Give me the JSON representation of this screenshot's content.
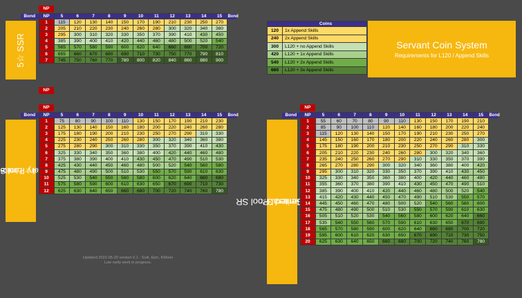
{
  "labels": {
    "np": "NP",
    "bond": "Bond",
    "coins": "Coins"
  },
  "levels": [
    "5",
    "6",
    "7",
    "8",
    "9",
    "10",
    "11",
    "12",
    "13",
    "14",
    "15"
  ],
  "title": {
    "main": "Servant Coin System",
    "sub": "Requirements for L120 / Append Skills"
  },
  "footer": {
    "line1": "Updated 2022-05-20 version 0.1 - SoA, Epic, KMoon",
    "line2": "Low rarity work in progress."
  },
  "colors": {
    "background": "#4a4a4a",
    "np": "#c00000",
    "header": "#3b2f8c",
    "panel": "#f6b70f"
  },
  "legend": [
    {
      "value": "120",
      "label": "1x Append Skills"
    },
    {
      "value": "240",
      "label": "2x Append Skills"
    },
    {
      "value": "300",
      "label": "L120 + no Append Skills"
    },
    {
      "value": "420",
      "label": "L120 + 1x Append Skills"
    },
    {
      "value": "540",
      "label": "L120 + 2x Append Skills"
    },
    {
      "value": "660",
      "label": "L120 + 3x Append Skills"
    }
  ],
  "ssr": {
    "label": "5☆ SSR",
    "rows": [
      {
        "np": "1",
        "vals": [
          "115",
          "120",
          "130",
          "140",
          "150",
          "170",
          "190",
          "210",
          "230",
          "250",
          "270"
        ]
      },
      {
        "np": "2",
        "vals": [
          "205",
          "210",
          "220",
          "230",
          "240",
          "260",
          "280",
          "300",
          "320",
          "340",
          "360"
        ]
      },
      {
        "np": "3",
        "vals": [
          "295",
          "300",
          "310",
          "320",
          "330",
          "350",
          "370",
          "390",
          "410",
          "430",
          "450"
        ]
      },
      {
        "np": "4",
        "vals": [
          "385",
          "390",
          "400",
          "410",
          "420",
          "440",
          "460",
          "480",
          "500",
          "520",
          "540"
        ]
      },
      {
        "np": "5",
        "vals": [
          "565",
          "570",
          "580",
          "590",
          "600",
          "620",
          "640",
          "660",
          "680",
          "700",
          "720"
        ]
      },
      {
        "np": "6",
        "vals": [
          "655",
          "660",
          "670",
          "680",
          "690",
          "710",
          "730",
          "750",
          "770",
          "790",
          "810"
        ]
      },
      {
        "np": "7",
        "vals": [
          "745",
          "750",
          "760",
          "770",
          "780",
          "800",
          "820",
          "840",
          "860",
          "880",
          "900"
        ]
      }
    ]
  },
  "limited": {
    "label1": "4☆ Limited",
    "label2": "or Story Pool SR",
    "rows": [
      {
        "np": "1",
        "vals": [
          "75",
          "80",
          "90",
          "100",
          "110",
          "130",
          "150",
          "170",
          "190",
          "210",
          "230"
        ]
      },
      {
        "np": "2",
        "vals": [
          "125",
          "130",
          "140",
          "150",
          "160",
          "180",
          "200",
          "220",
          "240",
          "260",
          "280"
        ]
      },
      {
        "np": "3",
        "vals": [
          "175",
          "180",
          "190",
          "200",
          "210",
          "230",
          "250",
          "270",
          "290",
          "310",
          "330"
        ]
      },
      {
        "np": "4",
        "vals": [
          "225",
          "230",
          "240",
          "250",
          "260",
          "280",
          "300",
          "320",
          "340",
          "360",
          "380"
        ]
      },
      {
        "np": "5",
        "vals": [
          "275",
          "280",
          "290",
          "300",
          "310",
          "330",
          "350",
          "370",
          "390",
          "410",
          "430"
        ]
      },
      {
        "np": "6",
        "vals": [
          "325",
          "330",
          "340",
          "350",
          "360",
          "380",
          "400",
          "420",
          "440",
          "460",
          "480"
        ]
      },
      {
        "np": "7",
        "vals": [
          "375",
          "380",
          "390",
          "400",
          "410",
          "430",
          "450",
          "470",
          "490",
          "510",
          "530"
        ]
      },
      {
        "np": "8",
        "vals": [
          "425",
          "430",
          "440",
          "450",
          "460",
          "480",
          "500",
          "520",
          "540",
          "560",
          "580"
        ]
      },
      {
        "np": "9",
        "vals": [
          "475",
          "480",
          "490",
          "500",
          "510",
          "530",
          "550",
          "570",
          "590",
          "610",
          "630"
        ]
      },
      {
        "np": "10",
        "vals": [
          "525",
          "530",
          "540",
          "550",
          "560",
          "580",
          "600",
          "620",
          "640",
          "660",
          "680"
        ]
      },
      {
        "np": "11",
        "vals": [
          "575",
          "580",
          "590",
          "600",
          "610",
          "630",
          "650",
          "670",
          "690",
          "710",
          "730"
        ]
      },
      {
        "np": "12",
        "vals": [
          "625",
          "630",
          "640",
          "650",
          "660",
          "680",
          "700",
          "720",
          "740",
          "760",
          "780"
        ]
      }
    ]
  },
  "general": {
    "label1": "4☆ General Pool SR",
    "label2": "or Limited 3☆",
    "rows": [
      {
        "np": "1",
        "vals": [
          "55",
          "60",
          "70",
          "80",
          "90",
          "110",
          "130",
          "150",
          "170",
          "190",
          "210"
        ]
      },
      {
        "np": "2",
        "vals": [
          "85",
          "90",
          "100",
          "110",
          "120",
          "140",
          "160",
          "180",
          "200",
          "220",
          "240"
        ]
      },
      {
        "np": "3",
        "vals": [
          "115",
          "120",
          "130",
          "140",
          "150",
          "170",
          "190",
          "210",
          "230",
          "250",
          "270"
        ]
      },
      {
        "np": "4",
        "vals": [
          "145",
          "150",
          "160",
          "170",
          "180",
          "200",
          "220",
          "240",
          "260",
          "280",
          "300"
        ]
      },
      {
        "np": "5",
        "vals": [
          "175",
          "180",
          "190",
          "200",
          "210",
          "230",
          "250",
          "270",
          "290",
          "310",
          "330"
        ]
      },
      {
        "np": "6",
        "vals": [
          "205",
          "210",
          "220",
          "230",
          "240",
          "260",
          "280",
          "300",
          "320",
          "340",
          "360"
        ]
      },
      {
        "np": "7",
        "vals": [
          "235",
          "240",
          "250",
          "260",
          "270",
          "290",
          "310",
          "330",
          "350",
          "370",
          "390"
        ]
      },
      {
        "np": "8",
        "vals": [
          "265",
          "270",
          "280",
          "290",
          "300",
          "320",
          "340",
          "360",
          "380",
          "400",
          "420"
        ]
      },
      {
        "np": "9",
        "vals": [
          "295",
          "300",
          "310",
          "320",
          "330",
          "350",
          "370",
          "390",
          "410",
          "430",
          "450"
        ]
      },
      {
        "np": "10",
        "vals": [
          "325",
          "330",
          "340",
          "350",
          "360",
          "380",
          "400",
          "420",
          "440",
          "460",
          "480"
        ]
      },
      {
        "np": "11",
        "vals": [
          "355",
          "360",
          "370",
          "380",
          "390",
          "410",
          "430",
          "450",
          "470",
          "490",
          "510"
        ]
      },
      {
        "np": "12",
        "vals": [
          "385",
          "390",
          "400",
          "410",
          "420",
          "440",
          "460",
          "480",
          "500",
          "520",
          "540"
        ]
      },
      {
        "np": "13",
        "vals": [
          "415",
          "420",
          "430",
          "440",
          "450",
          "470",
          "490",
          "510",
          "530",
          "550",
          "570"
        ]
      },
      {
        "np": "14",
        "vals": [
          "445",
          "450",
          "460",
          "470",
          "480",
          "500",
          "520",
          "540",
          "560",
          "580",
          "600"
        ]
      },
      {
        "np": "15",
        "vals": [
          "475",
          "480",
          "490",
          "500",
          "510",
          "530",
          "550",
          "570",
          "590",
          "610",
          "630"
        ]
      },
      {
        "np": "16",
        "vals": [
          "505",
          "510",
          "520",
          "530",
          "540",
          "560",
          "580",
          "600",
          "620",
          "640",
          "660"
        ]
      },
      {
        "np": "17",
        "vals": [
          "535",
          "540",
          "550",
          "560",
          "570",
          "590",
          "610",
          "630",
          "650",
          "670",
          "690"
        ]
      },
      {
        "np": "18",
        "vals": [
          "565",
          "570",
          "580",
          "590",
          "600",
          "620",
          "640",
          "660",
          "680",
          "700",
          "720"
        ]
      },
      {
        "np": "19",
        "vals": [
          "595",
          "600",
          "610",
          "620",
          "630",
          "650",
          "670",
          "690",
          "710",
          "730",
          "750"
        ]
      },
      {
        "np": "20",
        "vals": [
          "625",
          "630",
          "640",
          "650",
          "660",
          "680",
          "700",
          "720",
          "740",
          "760",
          "780"
        ]
      }
    ]
  }
}
